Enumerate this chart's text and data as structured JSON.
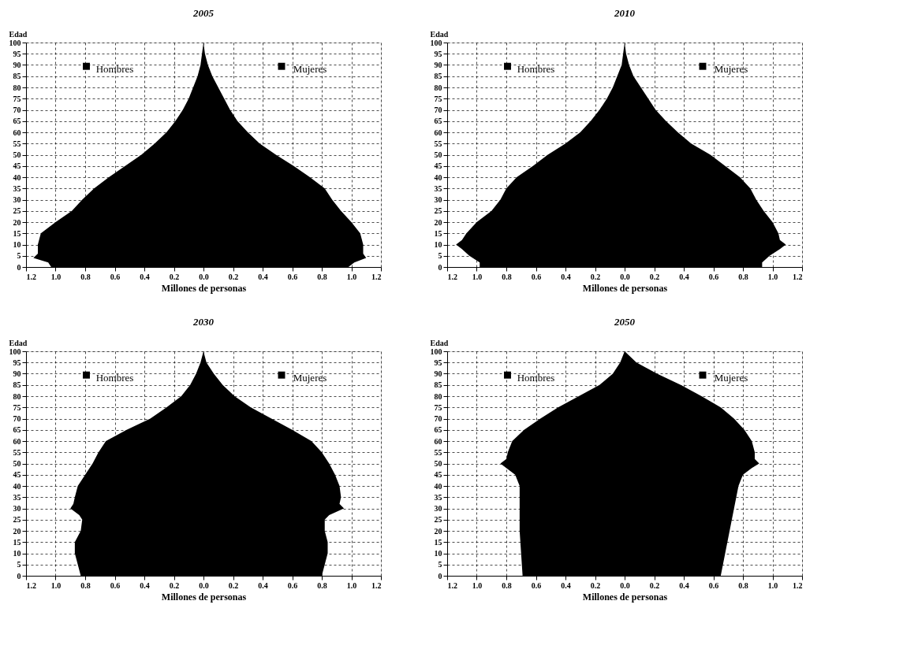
{
  "chart_data": [
    {
      "type": "area",
      "orientation": "horizontal",
      "title": "2005",
      "legend": "top",
      "xlabel": "Millones de personas",
      "ylabel": "Edad",
      "grid": true,
      "xlim": [
        -1.2,
        1.2
      ],
      "ylim": [
        0,
        100
      ],
      "xticks": [
        {
          "value": -1.2,
          "label": "1.2"
        },
        {
          "value": -1.0,
          "label": "1.0"
        },
        {
          "value": -0.8,
          "label": "0.8"
        },
        {
          "value": -0.6,
          "label": "0.6"
        },
        {
          "value": -0.4,
          "label": "0.4"
        },
        {
          "value": -0.2,
          "label": "0.2"
        },
        {
          "value": 0,
          "label": "0.0"
        },
        {
          "value": 0.2,
          "label": "0.2"
        },
        {
          "value": 0.4,
          "label": "0.4"
        },
        {
          "value": 0.6,
          "label": "0.6"
        },
        {
          "value": 0.8,
          "label": "0.8"
        },
        {
          "value": 1.0,
          "label": "1.0"
        },
        {
          "value": 1.2,
          "label": "1.2"
        }
      ],
      "yticks": [
        0,
        5,
        10,
        15,
        20,
        25,
        30,
        35,
        40,
        45,
        50,
        55,
        60,
        65,
        70,
        75,
        80,
        85,
        90,
        95,
        100
      ],
      "x": [
        0,
        2,
        4,
        6,
        10,
        15,
        20,
        25,
        30,
        35,
        40,
        45,
        50,
        55,
        60,
        65,
        70,
        75,
        80,
        85,
        90,
        95,
        100
      ],
      "series": [
        {
          "name": "Hombres",
          "color": "#000000",
          "values": [
            -1.03,
            -1.05,
            -1.15,
            -1.12,
            -1.12,
            -1.1,
            -1.0,
            -0.89,
            -0.82,
            -0.74,
            -0.64,
            -0.53,
            -0.42,
            -0.33,
            -0.25,
            -0.19,
            -0.14,
            -0.1,
            -0.07,
            -0.04,
            -0.02,
            -0.01,
            0
          ]
        },
        {
          "name": "Mujeres",
          "color": "#000000",
          "values": [
            0.98,
            1.02,
            1.1,
            1.08,
            1.08,
            1.06,
            1.0,
            0.93,
            0.87,
            0.82,
            0.72,
            0.61,
            0.49,
            0.38,
            0.3,
            0.23,
            0.18,
            0.14,
            0.1,
            0.06,
            0.03,
            0.01,
            0
          ]
        }
      ]
    },
    {
      "type": "area",
      "orientation": "horizontal",
      "title": "2010",
      "legend": "top",
      "xlabel": "Millones de personas",
      "ylabel": "Edad",
      "grid": true,
      "xlim": [
        -1.2,
        1.2
      ],
      "ylim": [
        0,
        100
      ],
      "xticks": [
        {
          "value": -1.2,
          "label": "1.2"
        },
        {
          "value": -1.0,
          "label": "1.0"
        },
        {
          "value": -0.8,
          "label": "0.8"
        },
        {
          "value": -0.6,
          "label": "0.6"
        },
        {
          "value": -0.4,
          "label": "0.4"
        },
        {
          "value": -0.2,
          "label": "0.2"
        },
        {
          "value": 0,
          "label": "0.0"
        },
        {
          "value": 0.2,
          "label": "0.2"
        },
        {
          "value": 0.4,
          "label": "0.4"
        },
        {
          "value": 0.6,
          "label": "0.6"
        },
        {
          "value": 0.8,
          "label": "0.8"
        },
        {
          "value": 1.0,
          "label": "1.0"
        },
        {
          "value": 1.2,
          "label": "1.2"
        }
      ],
      "yticks": [
        0,
        5,
        10,
        15,
        20,
        25,
        30,
        35,
        40,
        45,
        50,
        55,
        60,
        65,
        70,
        75,
        80,
        85,
        90,
        95,
        100
      ],
      "x": [
        0,
        2,
        5,
        8,
        10,
        12,
        15,
        20,
        25,
        30,
        35,
        40,
        45,
        50,
        55,
        60,
        65,
        70,
        75,
        80,
        85,
        90,
        95,
        100
      ],
      "series": [
        {
          "name": "Hombres",
          "color": "#000000",
          "values": [
            -0.98,
            -0.98,
            -1.05,
            -1.1,
            -1.14,
            -1.1,
            -1.07,
            -1.0,
            -0.9,
            -0.84,
            -0.8,
            -0.73,
            -0.62,
            -0.52,
            -0.4,
            -0.3,
            -0.23,
            -0.17,
            -0.12,
            -0.08,
            -0.05,
            -0.02,
            -0.01,
            0
          ]
        },
        {
          "name": "Mujeres",
          "color": "#000000",
          "values": [
            0.93,
            0.93,
            0.98,
            1.05,
            1.09,
            1.05,
            1.04,
            1.0,
            0.94,
            0.89,
            0.85,
            0.78,
            0.68,
            0.58,
            0.45,
            0.36,
            0.28,
            0.21,
            0.16,
            0.11,
            0.06,
            0.03,
            0.01,
            0
          ]
        }
      ]
    },
    {
      "type": "area",
      "orientation": "horizontal",
      "title": "2030",
      "legend": "top",
      "xlabel": "Millones de personas",
      "ylabel": "Edad",
      "grid": true,
      "xlim": [
        -1.2,
        1.2
      ],
      "ylim": [
        0,
        100
      ],
      "xticks": [
        {
          "value": -1.2,
          "label": "1.2"
        },
        {
          "value": -1.0,
          "label": "1.0"
        },
        {
          "value": -0.8,
          "label": "0.8"
        },
        {
          "value": -0.6,
          "label": "0.6"
        },
        {
          "value": -0.4,
          "label": "0.4"
        },
        {
          "value": -0.2,
          "label": "0.2"
        },
        {
          "value": 0,
          "label": "0.0"
        },
        {
          "value": 0.2,
          "label": "0.2"
        },
        {
          "value": 0.4,
          "label": "0.4"
        },
        {
          "value": 0.6,
          "label": "0.6"
        },
        {
          "value": 0.8,
          "label": "0.8"
        },
        {
          "value": 1.0,
          "label": "1.0"
        },
        {
          "value": 1.2,
          "label": "1.2"
        }
      ],
      "yticks": [
        0,
        5,
        10,
        15,
        20,
        25,
        30,
        35,
        40,
        45,
        50,
        55,
        60,
        65,
        70,
        75,
        80,
        85,
        90,
        95,
        100
      ],
      "x": [
        0,
        5,
        10,
        15,
        20,
        25,
        27,
        30,
        32,
        35,
        40,
        45,
        50,
        55,
        60,
        65,
        70,
        75,
        80,
        85,
        90,
        95,
        100
      ],
      "series": [
        {
          "name": "Hombres",
          "color": "#000000",
          "values": [
            -0.83,
            -0.85,
            -0.87,
            -0.87,
            -0.83,
            -0.82,
            -0.84,
            -0.9,
            -0.88,
            -0.87,
            -0.85,
            -0.8,
            -0.75,
            -0.71,
            -0.66,
            -0.52,
            -0.36,
            -0.25,
            -0.15,
            -0.09,
            -0.05,
            -0.02,
            0
          ]
        },
        {
          "name": "Mujeres",
          "color": "#000000",
          "values": [
            0.8,
            0.82,
            0.84,
            0.84,
            0.82,
            0.82,
            0.85,
            0.95,
            0.92,
            0.93,
            0.92,
            0.89,
            0.85,
            0.8,
            0.73,
            0.6,
            0.46,
            0.32,
            0.21,
            0.13,
            0.07,
            0.02,
            0
          ]
        }
      ]
    },
    {
      "type": "area",
      "orientation": "horizontal",
      "title": "2050",
      "legend": "top",
      "xlabel": "Millones de personas",
      "ylabel": "Edad",
      "grid": true,
      "xlim": [
        -1.2,
        1.2
      ],
      "ylim": [
        0,
        100
      ],
      "xticks": [
        {
          "value": -1.2,
          "label": "1.2"
        },
        {
          "value": -1.0,
          "label": "1.0"
        },
        {
          "value": -0.8,
          "label": "0.8"
        },
        {
          "value": -0.6,
          "label": "0.6"
        },
        {
          "value": -0.4,
          "label": "0.4"
        },
        {
          "value": -0.2,
          "label": "0.2"
        },
        {
          "value": 0,
          "label": "0.0"
        },
        {
          "value": 0.2,
          "label": "0.2"
        },
        {
          "value": 0.4,
          "label": "0.4"
        },
        {
          "value": 0.6,
          "label": "0.6"
        },
        {
          "value": 0.8,
          "label": "0.8"
        },
        {
          "value": 1.0,
          "label": "1.0"
        },
        {
          "value": 1.2,
          "label": "1.2"
        }
      ],
      "yticks": [
        0,
        5,
        10,
        15,
        20,
        25,
        30,
        35,
        40,
        45,
        50,
        55,
        60,
        65,
        70,
        75,
        80,
        85,
        90,
        95,
        100
      ],
      "x": [
        0,
        10,
        20,
        30,
        40,
        45,
        48,
        50,
        52,
        55,
        60,
        65,
        70,
        75,
        80,
        85,
        90,
        95,
        100
      ],
      "series": [
        {
          "name": "Hombres",
          "color": "#000000",
          "values": [
            -0.69,
            -0.7,
            -0.71,
            -0.71,
            -0.71,
            -0.74,
            -0.8,
            -0.84,
            -0.8,
            -0.79,
            -0.76,
            -0.68,
            -0.57,
            -0.45,
            -0.31,
            -0.17,
            -0.08,
            -0.03,
            0
          ]
        },
        {
          "name": "Mujeres",
          "color": "#000000",
          "values": [
            0.65,
            0.68,
            0.71,
            0.74,
            0.77,
            0.8,
            0.86,
            0.91,
            0.88,
            0.88,
            0.86,
            0.81,
            0.74,
            0.65,
            0.52,
            0.38,
            0.22,
            0.08,
            0
          ]
        }
      ]
    }
  ]
}
